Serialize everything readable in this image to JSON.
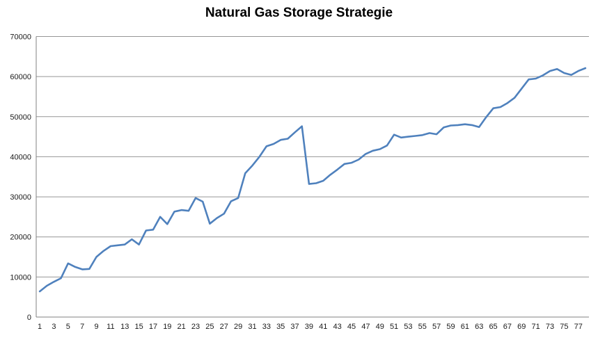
{
  "title": "Natural Gas Storage Strategie",
  "colors": {
    "series_line": "#4F81BD",
    "gridline": "#969696",
    "axis_line": "#808080",
    "tick_label": "#1a1a1a",
    "background": "#ffffff",
    "title_text": "#000000"
  },
  "chart_data": {
    "type": "line",
    "title": "Natural Gas Storage Strategie",
    "xlabel": "",
    "ylabel": "",
    "legend": "none",
    "grid": "horizontal",
    "ylim": [
      0,
      70000
    ],
    "y_ticks": [
      0,
      10000,
      20000,
      30000,
      40000,
      50000,
      60000,
      70000
    ],
    "x_tick_labels": [
      1,
      3,
      5,
      7,
      9,
      11,
      13,
      15,
      17,
      19,
      21,
      23,
      25,
      27,
      29,
      31,
      33,
      35,
      37,
      39,
      41,
      43,
      45,
      47,
      49,
      51,
      53,
      55,
      57,
      59,
      61,
      63,
      65,
      67,
      69,
      71,
      73,
      75,
      77
    ],
    "x": [
      1,
      2,
      3,
      4,
      5,
      6,
      7,
      8,
      9,
      10,
      11,
      12,
      13,
      14,
      15,
      16,
      17,
      18,
      19,
      20,
      21,
      22,
      23,
      24,
      25,
      26,
      27,
      28,
      29,
      30,
      31,
      32,
      33,
      34,
      35,
      36,
      37,
      38,
      39,
      40,
      41,
      42,
      43,
      44,
      45,
      46,
      47,
      48,
      49,
      50,
      51,
      52,
      53,
      54,
      55,
      56,
      57,
      58,
      59,
      60,
      61,
      62,
      63,
      64,
      65,
      66,
      67,
      68,
      69,
      70,
      71,
      72,
      73,
      74,
      75,
      76,
      77,
      78
    ],
    "values": [
      6400,
      7800,
      8800,
      9700,
      13400,
      12500,
      11900,
      12000,
      15000,
      16500,
      17700,
      17900,
      18100,
      19400,
      18100,
      21600,
      21800,
      25000,
      23200,
      26300,
      26700,
      26500,
      29700,
      28800,
      23300,
      24700,
      25800,
      28900,
      29700,
      35900,
      37800,
      40000,
      42600,
      43200,
      44200,
      44500,
      46100,
      47600,
      33200,
      33400,
      34000,
      35500,
      36800,
      38200,
      38500,
      39300,
      40700,
      41500,
      41900,
      42800,
      45500,
      44800,
      45000,
      45200,
      45400,
      45900,
      45600,
      47300,
      47800,
      47900,
      48100,
      47900,
      47400,
      49900,
      52100,
      52400,
      53400,
      54700,
      57000,
      59300,
      59500,
      60300,
      61400,
      61900,
      60900,
      60400,
      61400,
      62100
    ]
  }
}
